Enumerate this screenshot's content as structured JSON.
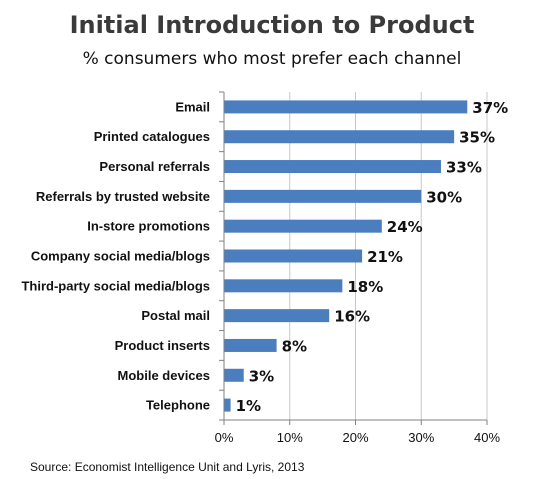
{
  "chart_data": {
    "type": "bar",
    "orientation": "horizontal",
    "title": "Initial Introduction to Product",
    "subtitle": "% consumers who most prefer each channel",
    "categories": [
      "Email",
      "Printed catalogues",
      "Personal referrals",
      "Referrals by trusted website",
      "In-store promotions",
      "Company social media/blogs",
      "Third-party social media/blogs",
      "Postal mail",
      "Product inserts",
      "Mobile devices",
      "Telephone"
    ],
    "values": [
      37,
      35,
      33,
      30,
      24,
      21,
      18,
      16,
      8,
      3,
      1
    ],
    "value_labels": [
      "37%",
      "35%",
      "33%",
      "30%",
      "24%",
      "21%",
      "18%",
      "16%",
      "8%",
      "3%",
      "1%"
    ],
    "xlim": [
      0,
      40
    ],
    "x_ticks": [
      0,
      10,
      20,
      30,
      40
    ],
    "x_tick_labels": [
      "0%",
      "10%",
      "20%",
      "30%",
      "40%"
    ],
    "xlabel": "",
    "ylabel": "",
    "grid": true,
    "bar_color": "#4a7ebf",
    "source": "Source: Economist Intelligence Unit and Lyris, 2013"
  }
}
